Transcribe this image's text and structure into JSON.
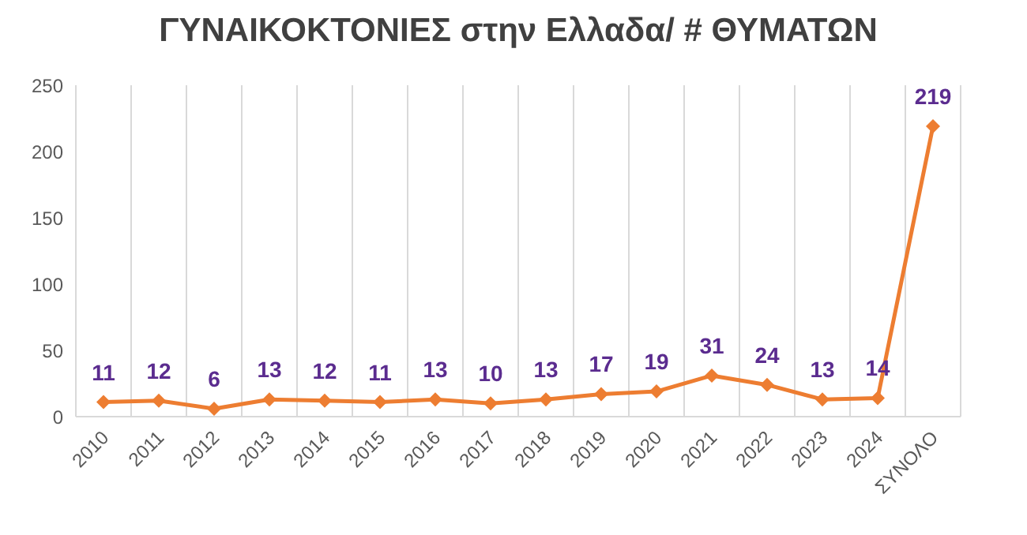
{
  "chart_data": {
    "type": "line",
    "title": "ΓΥΝΑΙΚΟΚΤΟΝΙΕΣ στην Ελλαδα/ # ΘΥΜΑΤΩΝ",
    "categories": [
      "2010",
      "2011",
      "2012",
      "2013",
      "2014",
      "2015",
      "2016",
      "2017",
      "2018",
      "2019",
      "2020",
      "2021",
      "2022",
      "2023",
      "2024",
      "ΣΥΝΟΛΟ"
    ],
    "series": [
      {
        "color": "#ed7d31",
        "values": [
          11,
          12,
          6,
          13,
          12,
          11,
          13,
          10,
          13,
          17,
          19,
          31,
          24,
          13,
          14,
          219
        ]
      }
    ],
    "ylim": [
      0,
      250
    ],
    "yticks": [
      0,
      50,
      100,
      150,
      200,
      250
    ],
    "grid": "x",
    "marker": "diamond",
    "line_style": "solid",
    "data_labels": true,
    "legend": false
  }
}
